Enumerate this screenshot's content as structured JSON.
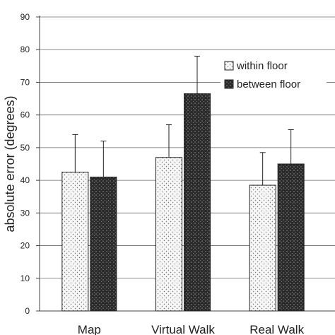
{
  "chart_data": {
    "type": "bar",
    "ylabel": "absolute error (degrees)",
    "ylim": [
      0,
      90
    ],
    "yticks": [
      0,
      10,
      20,
      30,
      40,
      50,
      60,
      70,
      80,
      90
    ],
    "categories": [
      "Map",
      "Virtual Walk",
      "Real Walk"
    ],
    "series": [
      {
        "name": "within floor",
        "values": [
          42.5,
          47,
          38.5
        ],
        "error": [
          11.5,
          10,
          10
        ],
        "pattern": "dotted-light",
        "color": "#f4f4f4"
      },
      {
        "name": "between floor",
        "values": [
          41,
          66.5,
          45
        ],
        "error": [
          11,
          11.5,
          10.5
        ],
        "pattern": "dark-speckled",
        "color": "#2a2a2a"
      }
    ],
    "grid": true,
    "legend_position": "top-right"
  }
}
